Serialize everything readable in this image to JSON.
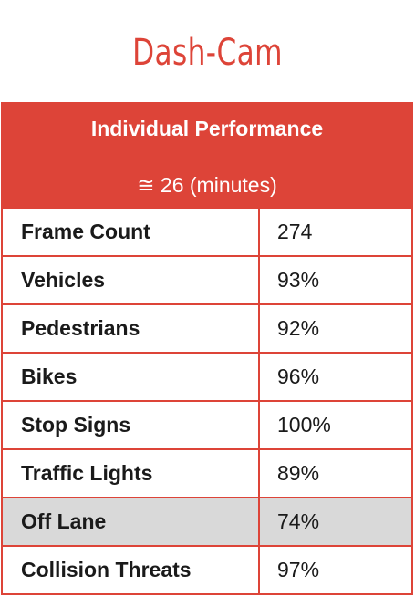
{
  "title": "Dash-Cam",
  "header": {
    "title": "Individual Performance",
    "subtitle": "≅ 26 (minutes)"
  },
  "rows": [
    {
      "label": "Frame Count",
      "value": "274"
    },
    {
      "label": "Vehicles",
      "value": "93%"
    },
    {
      "label": "Pedestrians",
      "value": "92%"
    },
    {
      "label": "Bikes",
      "value": "96%"
    },
    {
      "label": "Stop Signs",
      "value": "100%"
    },
    {
      "label": "Traffic Lights",
      "value": "89%"
    },
    {
      "label": "Off Lane",
      "value": "74%",
      "highlighted": true
    },
    {
      "label": "Collision Threats",
      "value": "97%"
    }
  ],
  "colors": {
    "accent": "#dd4438",
    "highlight_row": "#d9d9d9"
  }
}
